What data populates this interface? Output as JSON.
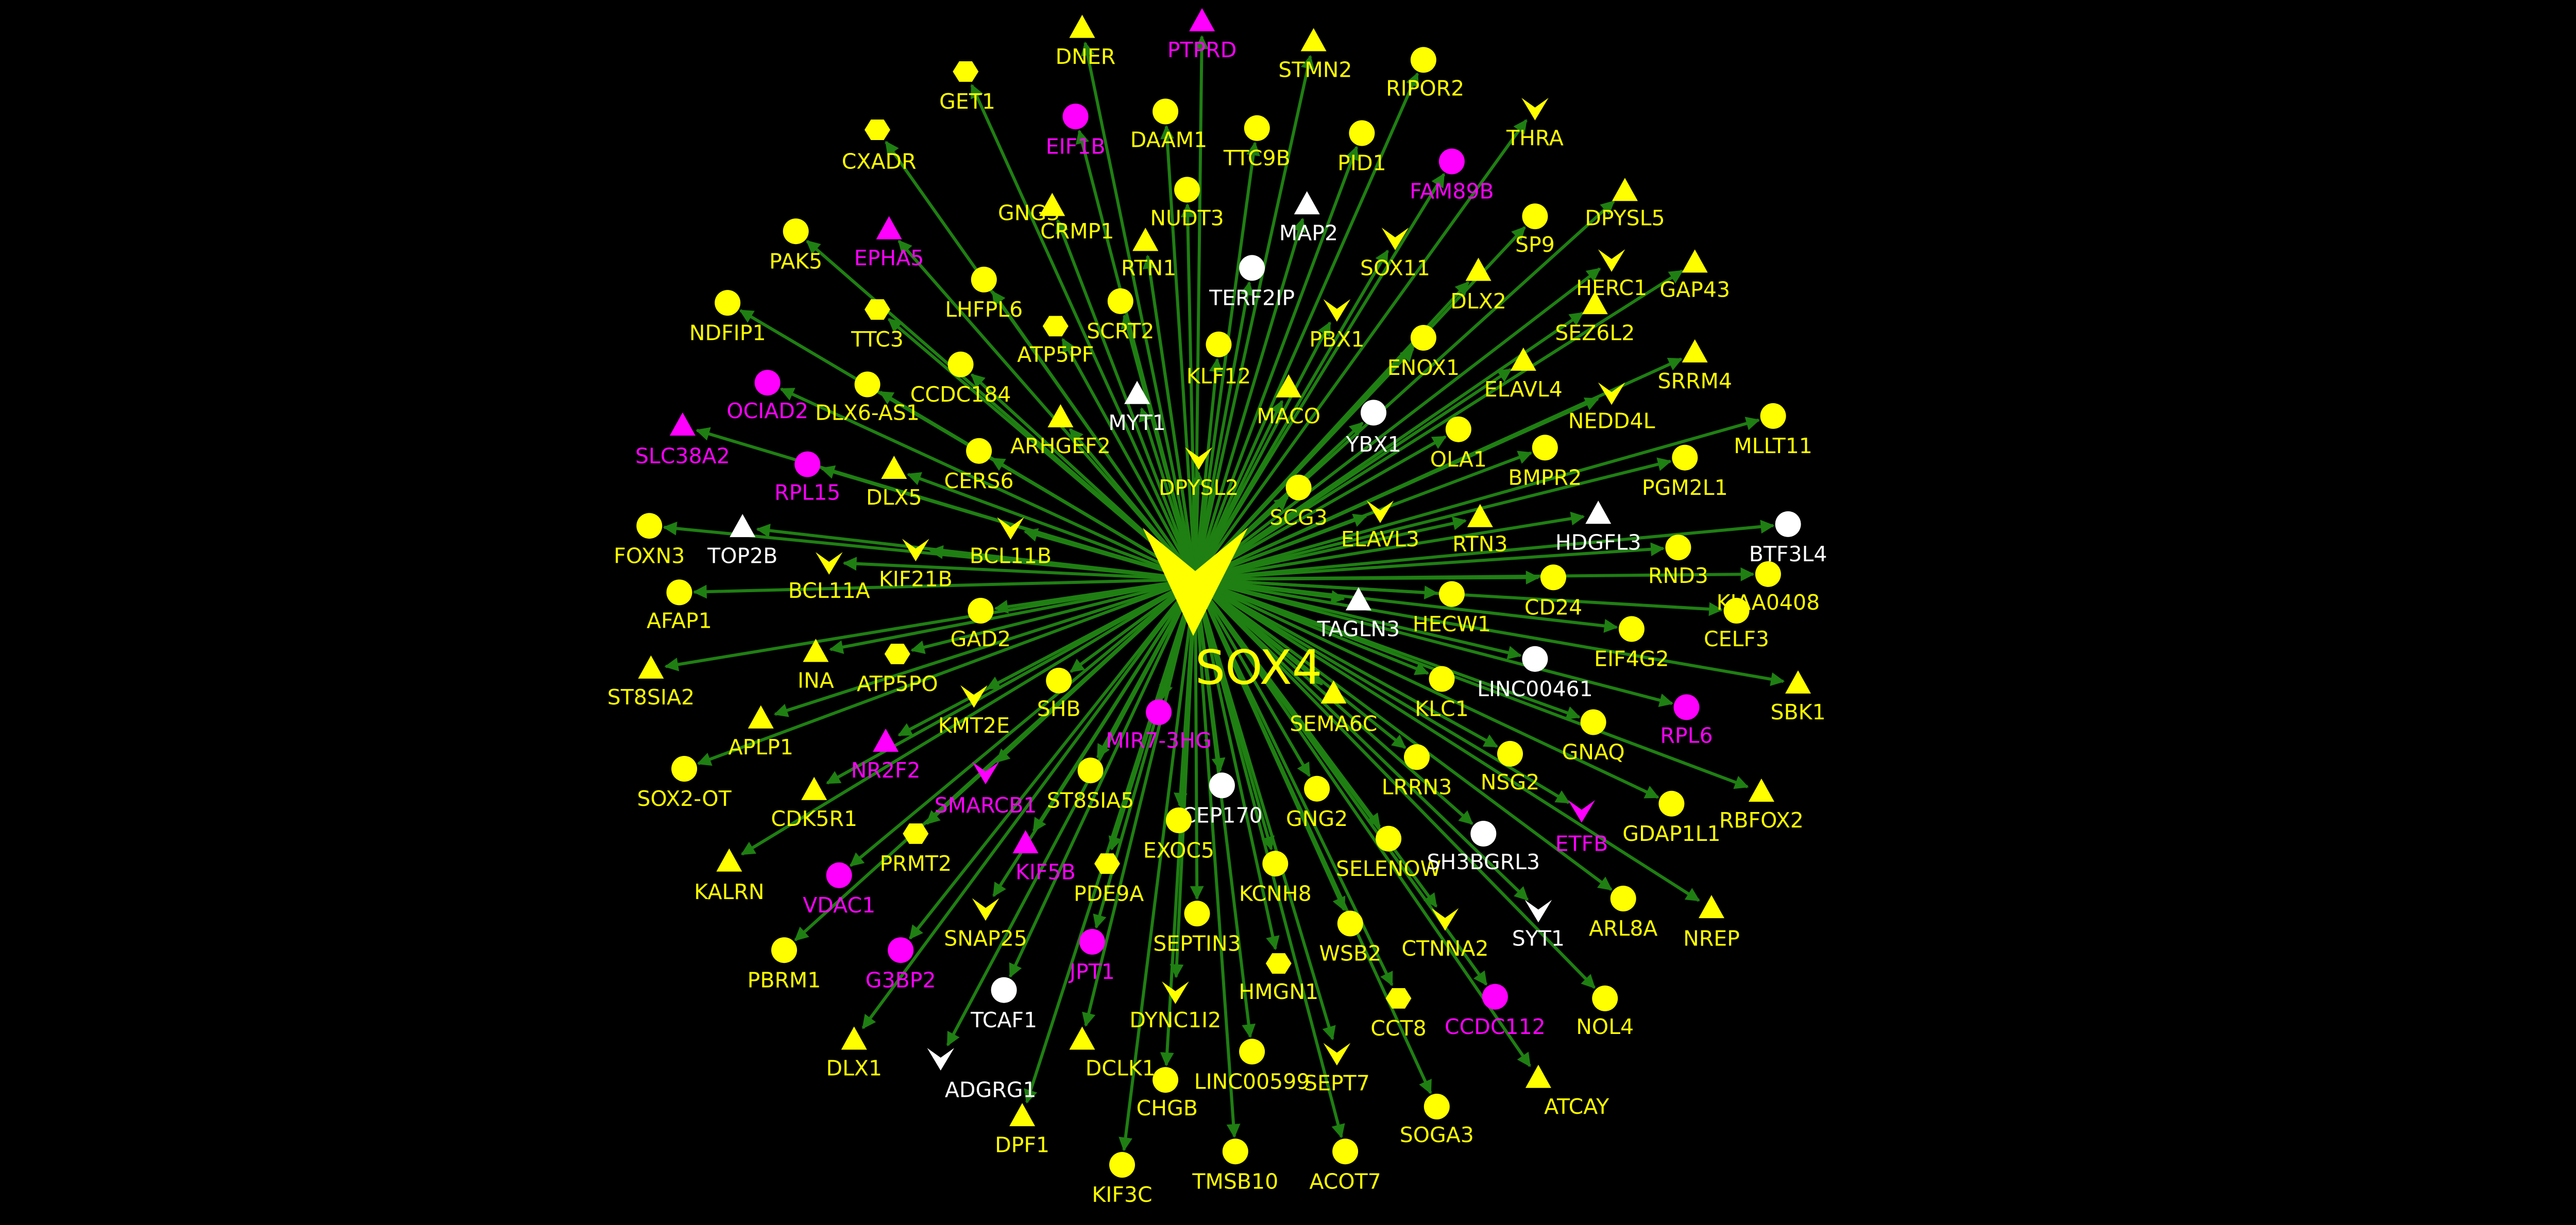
{
  "center": {
    "label": "SOX4",
    "shape": "v",
    "color": "yellow"
  },
  "colors": {
    "background": "#000000",
    "edge": "#1f7f12",
    "yellow": "#ffff00",
    "magenta": "#ff00ff",
    "white": "#ffffff"
  },
  "nodes": [
    {
      "label": "DNER",
      "shape": "tri",
      "color": "yellow"
    },
    {
      "label": "PTPRD",
      "shape": "tri",
      "color": "magenta"
    },
    {
      "label": "STMN2",
      "shape": "tri",
      "color": "yellow"
    },
    {
      "label": "RIPOR2",
      "shape": "circle",
      "color": "yellow"
    },
    {
      "label": "GET1",
      "shape": "hex",
      "color": "yellow"
    },
    {
      "label": "EIF1B",
      "shape": "circle",
      "color": "magenta"
    },
    {
      "label": "DAAM1",
      "shape": "circle",
      "color": "yellow"
    },
    {
      "label": "TTC9B",
      "shape": "circle",
      "color": "yellow"
    },
    {
      "label": "PID1",
      "shape": "circle",
      "color": "yellow"
    },
    {
      "label": "THRA",
      "shape": "v",
      "color": "yellow"
    },
    {
      "label": "CXADR",
      "shape": "hex",
      "color": "yellow"
    },
    {
      "label": "FAM89B",
      "shape": "circle",
      "color": "magenta"
    },
    {
      "label": "GNG3",
      "shape": "tri",
      "color": "yellow"
    },
    {
      "label": "NUDT3",
      "shape": "circle",
      "color": "yellow"
    },
    {
      "label": "MAP2",
      "shape": "tri",
      "color": "white"
    },
    {
      "label": "DPYSL5",
      "shape": "tri",
      "color": "yellow"
    },
    {
      "label": "PAK5",
      "shape": "circle",
      "color": "yellow"
    },
    {
      "label": "EPHA5",
      "shape": "tri",
      "color": "magenta"
    },
    {
      "label": "CRMP1",
      "shape": "tri",
      "color": "yellow"
    },
    {
      "label": "SP9",
      "shape": "circle",
      "color": "yellow"
    },
    {
      "label": "RTN1",
      "shape": "tri",
      "color": "yellow"
    },
    {
      "label": "SOX11",
      "shape": "v",
      "color": "yellow"
    },
    {
      "label": "TERF2IP",
      "shape": "circle",
      "color": "white"
    },
    {
      "label": "HERC1",
      "shape": "v",
      "color": "yellow"
    },
    {
      "label": "GAP43",
      "shape": "tri",
      "color": "yellow"
    },
    {
      "label": "LHFPL6",
      "shape": "circle",
      "color": "yellow"
    },
    {
      "label": "DLX2",
      "shape": "tri",
      "color": "yellow"
    },
    {
      "label": "NDFIP1",
      "shape": "circle",
      "color": "yellow"
    },
    {
      "label": "TTC3",
      "shape": "hex",
      "color": "yellow"
    },
    {
      "label": "ATP5PF",
      "shape": "hex",
      "color": "yellow"
    },
    {
      "label": "SCRT2",
      "shape": "circle",
      "color": "yellow"
    },
    {
      "label": "PBX1",
      "shape": "v",
      "color": "yellow"
    },
    {
      "label": "SEZ6L2",
      "shape": "tri",
      "color": "yellow"
    },
    {
      "label": "ENOX1",
      "shape": "circle",
      "color": "yellow"
    },
    {
      "label": "CCDC184",
      "shape": "circle",
      "color": "yellow"
    },
    {
      "label": "KLF12",
      "shape": "circle",
      "color": "yellow"
    },
    {
      "label": "SRRM4",
      "shape": "tri",
      "color": "yellow"
    },
    {
      "label": "OCIAD2",
      "shape": "circle",
      "color": "magenta"
    },
    {
      "label": "DLX6-AS1",
      "shape": "circle",
      "color": "yellow"
    },
    {
      "label": "ELAVL4",
      "shape": "tri",
      "color": "yellow"
    },
    {
      "label": "MYT1",
      "shape": "tri",
      "color": "white"
    },
    {
      "label": "MACO",
      "shape": "tri",
      "color": "yellow"
    },
    {
      "label": "YBX1",
      "shape": "circle",
      "color": "white"
    },
    {
      "label": "NEDD4L",
      "shape": "v",
      "color": "yellow"
    },
    {
      "label": "MLLT11",
      "shape": "circle",
      "color": "yellow"
    },
    {
      "label": "ARHGEF2",
      "shape": "tri",
      "color": "yellow"
    },
    {
      "label": "OLA1",
      "shape": "circle",
      "color": "yellow"
    },
    {
      "label": "SLC38A2",
      "shape": "tri",
      "color": "magenta"
    },
    {
      "label": "RPL15",
      "shape": "circle",
      "color": "magenta"
    },
    {
      "label": "DLX5",
      "shape": "tri",
      "color": "yellow"
    },
    {
      "label": "CERS6",
      "shape": "circle",
      "color": "yellow"
    },
    {
      "label": "DPYSL2",
      "shape": "v",
      "color": "yellow"
    },
    {
      "label": "BMPR2",
      "shape": "circle",
      "color": "yellow"
    },
    {
      "label": "PGM2L1",
      "shape": "circle",
      "color": "yellow"
    },
    {
      "label": "SCG3",
      "shape": "circle",
      "color": "yellow"
    },
    {
      "label": "FOXN3",
      "shape": "circle",
      "color": "yellow"
    },
    {
      "label": "TOP2B",
      "shape": "tri",
      "color": "white"
    },
    {
      "label": "BCL11B",
      "shape": "v",
      "color": "yellow"
    },
    {
      "label": "ELAVL3",
      "shape": "v",
      "color": "yellow"
    },
    {
      "label": "HDGFL3",
      "shape": "tri",
      "color": "white"
    },
    {
      "label": "BTF3L4",
      "shape": "circle",
      "color": "white"
    },
    {
      "label": "RTN3",
      "shape": "tri",
      "color": "yellow"
    },
    {
      "label": "KIF21B",
      "shape": "v",
      "color": "yellow"
    },
    {
      "label": "BCL11A",
      "shape": "v",
      "color": "yellow"
    },
    {
      "label": "RND3",
      "shape": "circle",
      "color": "yellow"
    },
    {
      "label": "AFAP1",
      "shape": "circle",
      "color": "yellow"
    },
    {
      "label": "CD24",
      "shape": "circle",
      "color": "yellow"
    },
    {
      "label": "KIAA0408",
      "shape": "circle",
      "color": "yellow"
    },
    {
      "label": "TAGLN3",
      "shape": "tri",
      "color": "white"
    },
    {
      "label": "HECW1",
      "shape": "circle",
      "color": "yellow"
    },
    {
      "label": "GAD2",
      "shape": "circle",
      "color": "yellow"
    },
    {
      "label": "CELF3",
      "shape": "circle",
      "color": "yellow"
    },
    {
      "label": "INA",
      "shape": "tri",
      "color": "yellow"
    },
    {
      "label": "EIF4G2",
      "shape": "circle",
      "color": "yellow"
    },
    {
      "label": "ATP5PO",
      "shape": "hex",
      "color": "yellow"
    },
    {
      "label": "ST8SIA2",
      "shape": "tri",
      "color": "yellow"
    },
    {
      "label": "LINC00461",
      "shape": "circle",
      "color": "white"
    },
    {
      "label": "SBK1",
      "shape": "tri",
      "color": "yellow"
    },
    {
      "label": "SHB",
      "shape": "circle",
      "color": "yellow"
    },
    {
      "label": "KMT2E",
      "shape": "v",
      "color": "yellow"
    },
    {
      "label": "KLC1",
      "shape": "circle",
      "color": "yellow"
    },
    {
      "label": "SEMA6C",
      "shape": "tri",
      "color": "yellow"
    },
    {
      "label": "RPL6",
      "shape": "circle",
      "color": "magenta"
    },
    {
      "label": "APLP1",
      "shape": "tri",
      "color": "yellow"
    },
    {
      "label": "MIR7-3HG",
      "shape": "circle",
      "color": "magenta"
    },
    {
      "label": "GNAQ",
      "shape": "circle",
      "color": "yellow"
    },
    {
      "label": "NR2F2",
      "shape": "tri",
      "color": "magenta"
    },
    {
      "label": "NSG2",
      "shape": "circle",
      "color": "yellow"
    },
    {
      "label": "SOX2-OT",
      "shape": "circle",
      "color": "yellow"
    },
    {
      "label": "LRRN3",
      "shape": "circle",
      "color": "yellow"
    },
    {
      "label": "CDK5R1",
      "shape": "tri",
      "color": "yellow"
    },
    {
      "label": "ST8SIA5",
      "shape": "circle",
      "color": "yellow"
    },
    {
      "label": "SMARCB1",
      "shape": "v",
      "color": "magenta"
    },
    {
      "label": "CEP170",
      "shape": "circle",
      "color": "white"
    },
    {
      "label": "RBFOX2",
      "shape": "tri",
      "color": "yellow"
    },
    {
      "label": "GNG2",
      "shape": "circle",
      "color": "yellow"
    },
    {
      "label": "GDAP1L1",
      "shape": "circle",
      "color": "yellow"
    },
    {
      "label": "ETFB",
      "shape": "v",
      "color": "magenta"
    },
    {
      "label": "PRMT2",
      "shape": "hex",
      "color": "yellow"
    },
    {
      "label": "EXOC5",
      "shape": "circle",
      "color": "yellow"
    },
    {
      "label": "KALRN",
      "shape": "tri",
      "color": "yellow"
    },
    {
      "label": "SELENOW",
      "shape": "circle",
      "color": "yellow"
    },
    {
      "label": "SH3BGRL3",
      "shape": "circle",
      "color": "white"
    },
    {
      "label": "VDAC1",
      "shape": "circle",
      "color": "magenta"
    },
    {
      "label": "KIF5B",
      "shape": "tri",
      "color": "magenta"
    },
    {
      "label": "PDE9A",
      "shape": "hex",
      "color": "yellow"
    },
    {
      "label": "KCNH8",
      "shape": "circle",
      "color": "yellow"
    },
    {
      "label": "ARL8A",
      "shape": "circle",
      "color": "yellow"
    },
    {
      "label": "NREP",
      "shape": "tri",
      "color": "yellow"
    },
    {
      "label": "SNAP25",
      "shape": "v",
      "color": "yellow"
    },
    {
      "label": "SEPTIN3",
      "shape": "circle",
      "color": "yellow"
    },
    {
      "label": "CTNNA2",
      "shape": "v",
      "color": "yellow"
    },
    {
      "label": "SYT1",
      "shape": "v",
      "color": "white"
    },
    {
      "label": "PBRM1",
      "shape": "circle",
      "color": "yellow"
    },
    {
      "label": "G3BP2",
      "shape": "circle",
      "color": "magenta"
    },
    {
      "label": "JPT1",
      "shape": "circle",
      "color": "magenta"
    },
    {
      "label": "WSB2",
      "shape": "circle",
      "color": "yellow"
    },
    {
      "label": "HMGN1",
      "shape": "hex",
      "color": "yellow"
    },
    {
      "label": "TCAF1",
      "shape": "circle",
      "color": "white"
    },
    {
      "label": "DYNC1I2",
      "shape": "v",
      "color": "yellow"
    },
    {
      "label": "CCT8",
      "shape": "hex",
      "color": "yellow"
    },
    {
      "label": "CCDC112",
      "shape": "circle",
      "color": "magenta"
    },
    {
      "label": "NOL4",
      "shape": "circle",
      "color": "yellow"
    },
    {
      "label": "DLX1",
      "shape": "tri",
      "color": "yellow"
    },
    {
      "label": "ADGRG1",
      "shape": "v",
      "color": "white"
    },
    {
      "label": "DCLK1",
      "shape": "tri",
      "color": "yellow"
    },
    {
      "label": "LINC00599",
      "shape": "circle",
      "color": "yellow"
    },
    {
      "label": "SEPT7",
      "shape": "v",
      "color": "yellow"
    },
    {
      "label": "CHGB",
      "shape": "circle",
      "color": "yellow"
    },
    {
      "label": "ATCAY",
      "shape": "tri",
      "color": "yellow"
    },
    {
      "label": "DPF1",
      "shape": "tri",
      "color": "yellow"
    },
    {
      "label": "SOGA3",
      "shape": "circle",
      "color": "yellow"
    },
    {
      "label": "TMSB10",
      "shape": "circle",
      "color": "yellow"
    },
    {
      "label": "ACOT7",
      "shape": "circle",
      "color": "yellow"
    },
    {
      "label": "KIF3C",
      "shape": "circle",
      "color": "yellow"
    }
  ]
}
